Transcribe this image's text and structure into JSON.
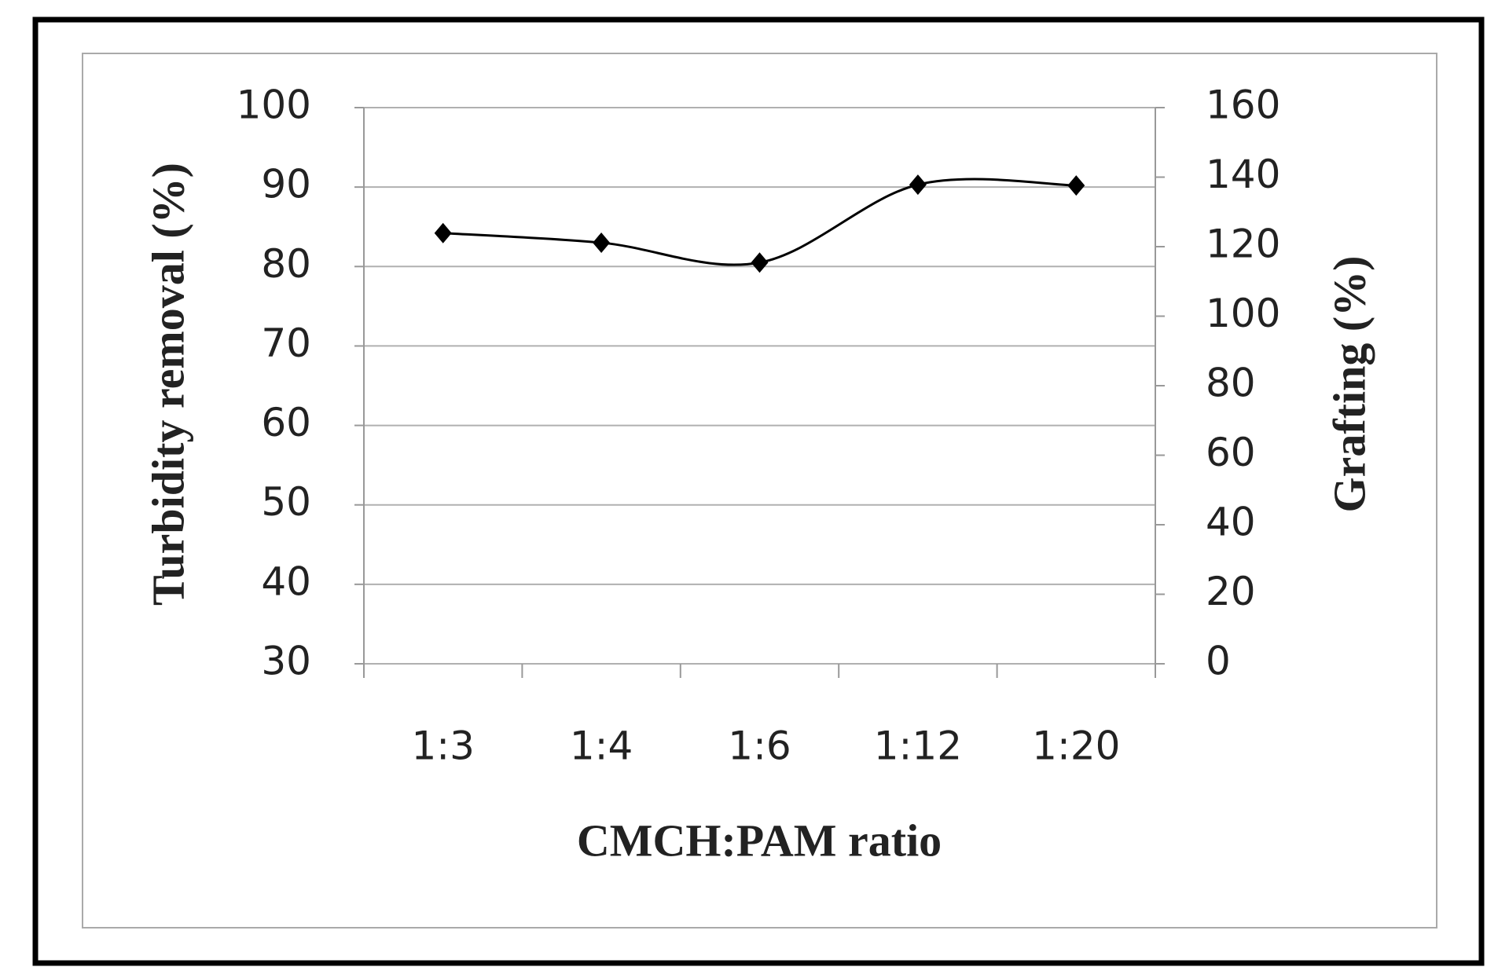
{
  "chart_data": {
    "type": "line",
    "categories": [
      "1:3",
      "1:4",
      "1:6",
      "1:12",
      "1:20"
    ],
    "series": [
      {
        "color": "#000000",
        "values": [
          84.2,
          83,
          80.5,
          90.3,
          90.2
        ]
      }
    ],
    "xlabel": "CMCH:PAM ratio",
    "ylabel": "Turbidity removal (%)",
    "y2label": "Grafting (%)",
    "ylim": [
      30,
      100
    ],
    "yticks": [
      30,
      40,
      50,
      60,
      70,
      80,
      90,
      100
    ],
    "y2lim": [
      0,
      160
    ],
    "y2ticks": [
      0,
      20,
      40,
      60,
      80,
      100,
      120,
      140,
      160
    ],
    "grid": true,
    "smooth": true
  }
}
